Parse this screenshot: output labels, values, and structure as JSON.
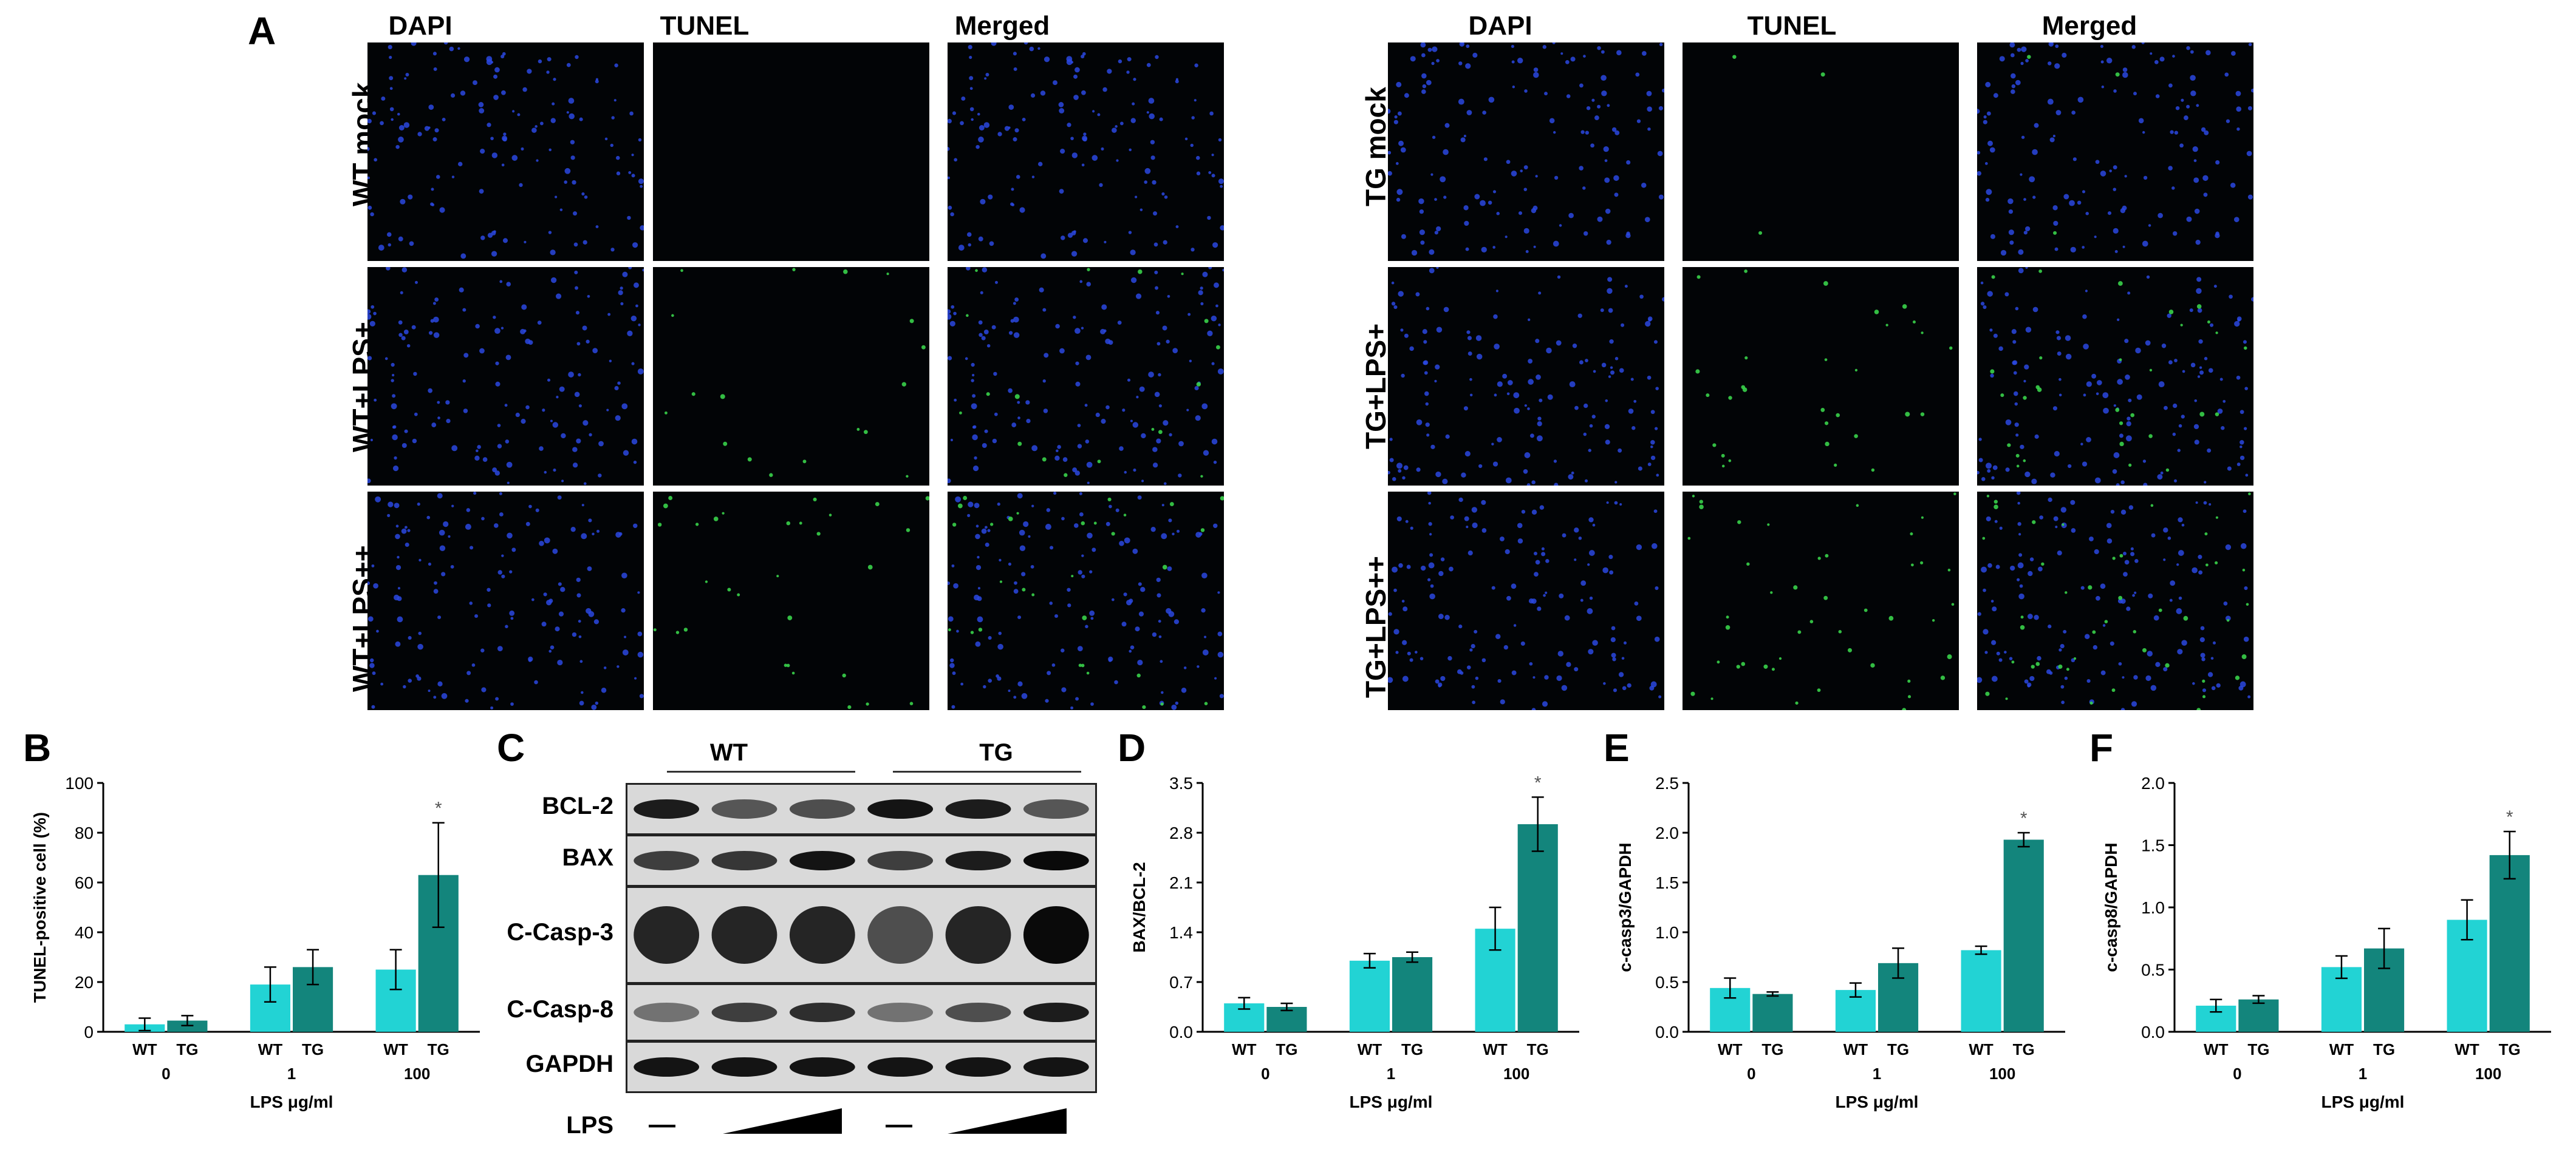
{
  "panel_letters": {
    "A": "A",
    "B": "B",
    "C": "C",
    "D": "D",
    "E": "E",
    "F": "F"
  },
  "panel_A": {
    "column_titles": [
      "DAPI",
      "TUNEL",
      "Merged"
    ],
    "left_rows": [
      "WT mock",
      "WT+LPS+",
      "WT+LPS++"
    ],
    "right_rows": [
      "TG mock",
      "TG+LPS+",
      "TG+LPS++"
    ],
    "colors": {
      "background": "#020406",
      "dapi": "#2a48e0",
      "tunel": "#39d24a"
    }
  },
  "panel_C": {
    "groups": [
      "WT",
      "TG"
    ],
    "rows": [
      "BCL-2",
      "BAX",
      "C-Casp-3",
      "C-Casp-8",
      "GAPDH"
    ],
    "lps_label": "LPS",
    "lps_dose_marks": [
      "—",
      "—"
    ]
  },
  "colors": {
    "wt_bar": "#22d3d4",
    "tg_bar": "#13857c",
    "errorbar": "#000000"
  },
  "chart_data": [
    {
      "panel": "B",
      "type": "bar",
      "categories": [
        "0",
        "1",
        "100"
      ],
      "subcategories": [
        "WT",
        "TG"
      ],
      "series": [
        {
          "name": "WT",
          "values": [
            3,
            19,
            25
          ],
          "errors": [
            2.5,
            7,
            8
          ]
        },
        {
          "name": "TG",
          "values": [
            4.5,
            26,
            63
          ],
          "errors": [
            2,
            7,
            21
          ]
        }
      ],
      "xlabel": "LPS μg/ml",
      "ylabel": "TUNEL-positive cell (%)",
      "ylim": [
        0,
        100
      ],
      "yticks": [
        "0",
        "20",
        "40",
        "60",
        "80",
        "100"
      ],
      "significance": [
        {
          "category": "100",
          "series": "TG",
          "label": "*"
        }
      ]
    },
    {
      "panel": "D",
      "type": "bar",
      "categories": [
        "0",
        "1",
        "100"
      ],
      "subcategories": [
        "WT",
        "TG"
      ],
      "series": [
        {
          "name": "WT",
          "values": [
            0.4,
            1.0,
            1.45
          ],
          "errors": [
            0.08,
            0.1,
            0.3
          ]
        },
        {
          "name": "TG",
          "values": [
            0.35,
            1.05,
            2.92
          ],
          "errors": [
            0.05,
            0.07,
            0.38
          ]
        }
      ],
      "xlabel": "LPS μg/ml",
      "ylabel": "BAX/BCL-2",
      "ylim": [
        0,
        3.5
      ],
      "yticks": [
        "0.0",
        "0.7",
        "1.4",
        "2.1",
        "2.8",
        "3.5"
      ],
      "significance": [
        {
          "category": "100",
          "series": "TG",
          "label": "*"
        }
      ]
    },
    {
      "panel": "E",
      "type": "bar",
      "categories": [
        "0",
        "1",
        "100"
      ],
      "subcategories": [
        "WT",
        "TG"
      ],
      "series": [
        {
          "name": "WT",
          "values": [
            0.44,
            0.42,
            0.82
          ],
          "errors": [
            0.1,
            0.07,
            0.04
          ]
        },
        {
          "name": "TG",
          "values": [
            0.38,
            0.69,
            1.93
          ],
          "errors": [
            0.02,
            0.15,
            0.07
          ]
        }
      ],
      "xlabel": "LPS μg/ml",
      "ylabel": "c-casp3/GAPDH",
      "ylim": [
        0,
        2.5
      ],
      "yticks": [
        "0.0",
        "0.5",
        "1.0",
        "1.5",
        "2.0",
        "2.5"
      ],
      "significance": [
        {
          "category": "100",
          "series": "TG",
          "label": "*"
        }
      ]
    },
    {
      "panel": "F",
      "type": "bar",
      "categories": [
        "0",
        "1",
        "100"
      ],
      "subcategories": [
        "WT",
        "TG"
      ],
      "series": [
        {
          "name": "WT",
          "values": [
            0.21,
            0.52,
            0.9
          ],
          "errors": [
            0.05,
            0.09,
            0.16
          ]
        },
        {
          "name": "TG",
          "values": [
            0.26,
            0.67,
            1.42
          ],
          "errors": [
            0.03,
            0.16,
            0.19
          ]
        }
      ],
      "xlabel": "LPS μg/ml",
      "ylabel": "c-casp8/GAPDH",
      "ylim": [
        0,
        2.0
      ],
      "yticks": [
        "0.0",
        "0.5",
        "1.0",
        "1.5",
        "2.0"
      ],
      "significance": [
        {
          "category": "100",
          "series": "TG",
          "label": "*"
        }
      ]
    }
  ]
}
